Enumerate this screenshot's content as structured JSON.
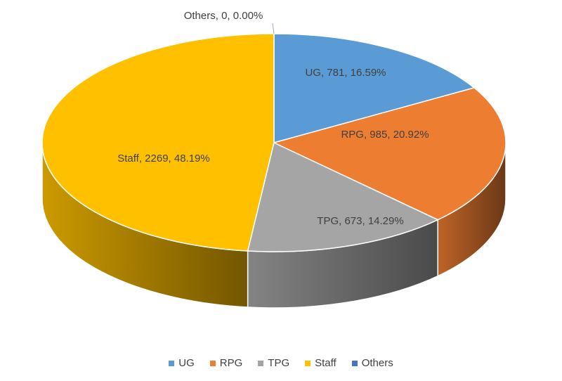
{
  "chart_data": {
    "type": "pie",
    "style": "3d",
    "title": "",
    "categories": [
      "UG",
      "RPG",
      "TPG",
      "Staff",
      "Others"
    ],
    "values": [
      781,
      985,
      673,
      2269,
      0
    ],
    "percentages": [
      "16.59%",
      "20.92%",
      "14.29%",
      "48.19%",
      "0.00%"
    ],
    "data_labels": [
      "UG, 781, 16.59%",
      "RPG, 985, 20.92%",
      "TPG, 673, 14.29%",
      "Staff, 2269, 48.19%",
      "Others, 0, 0.00%"
    ],
    "colors": [
      "#5B9BD5",
      "#ED7D31",
      "#A5A5A5",
      "#FFC000",
      "#4472C4"
    ],
    "legend_position": "bottom"
  }
}
